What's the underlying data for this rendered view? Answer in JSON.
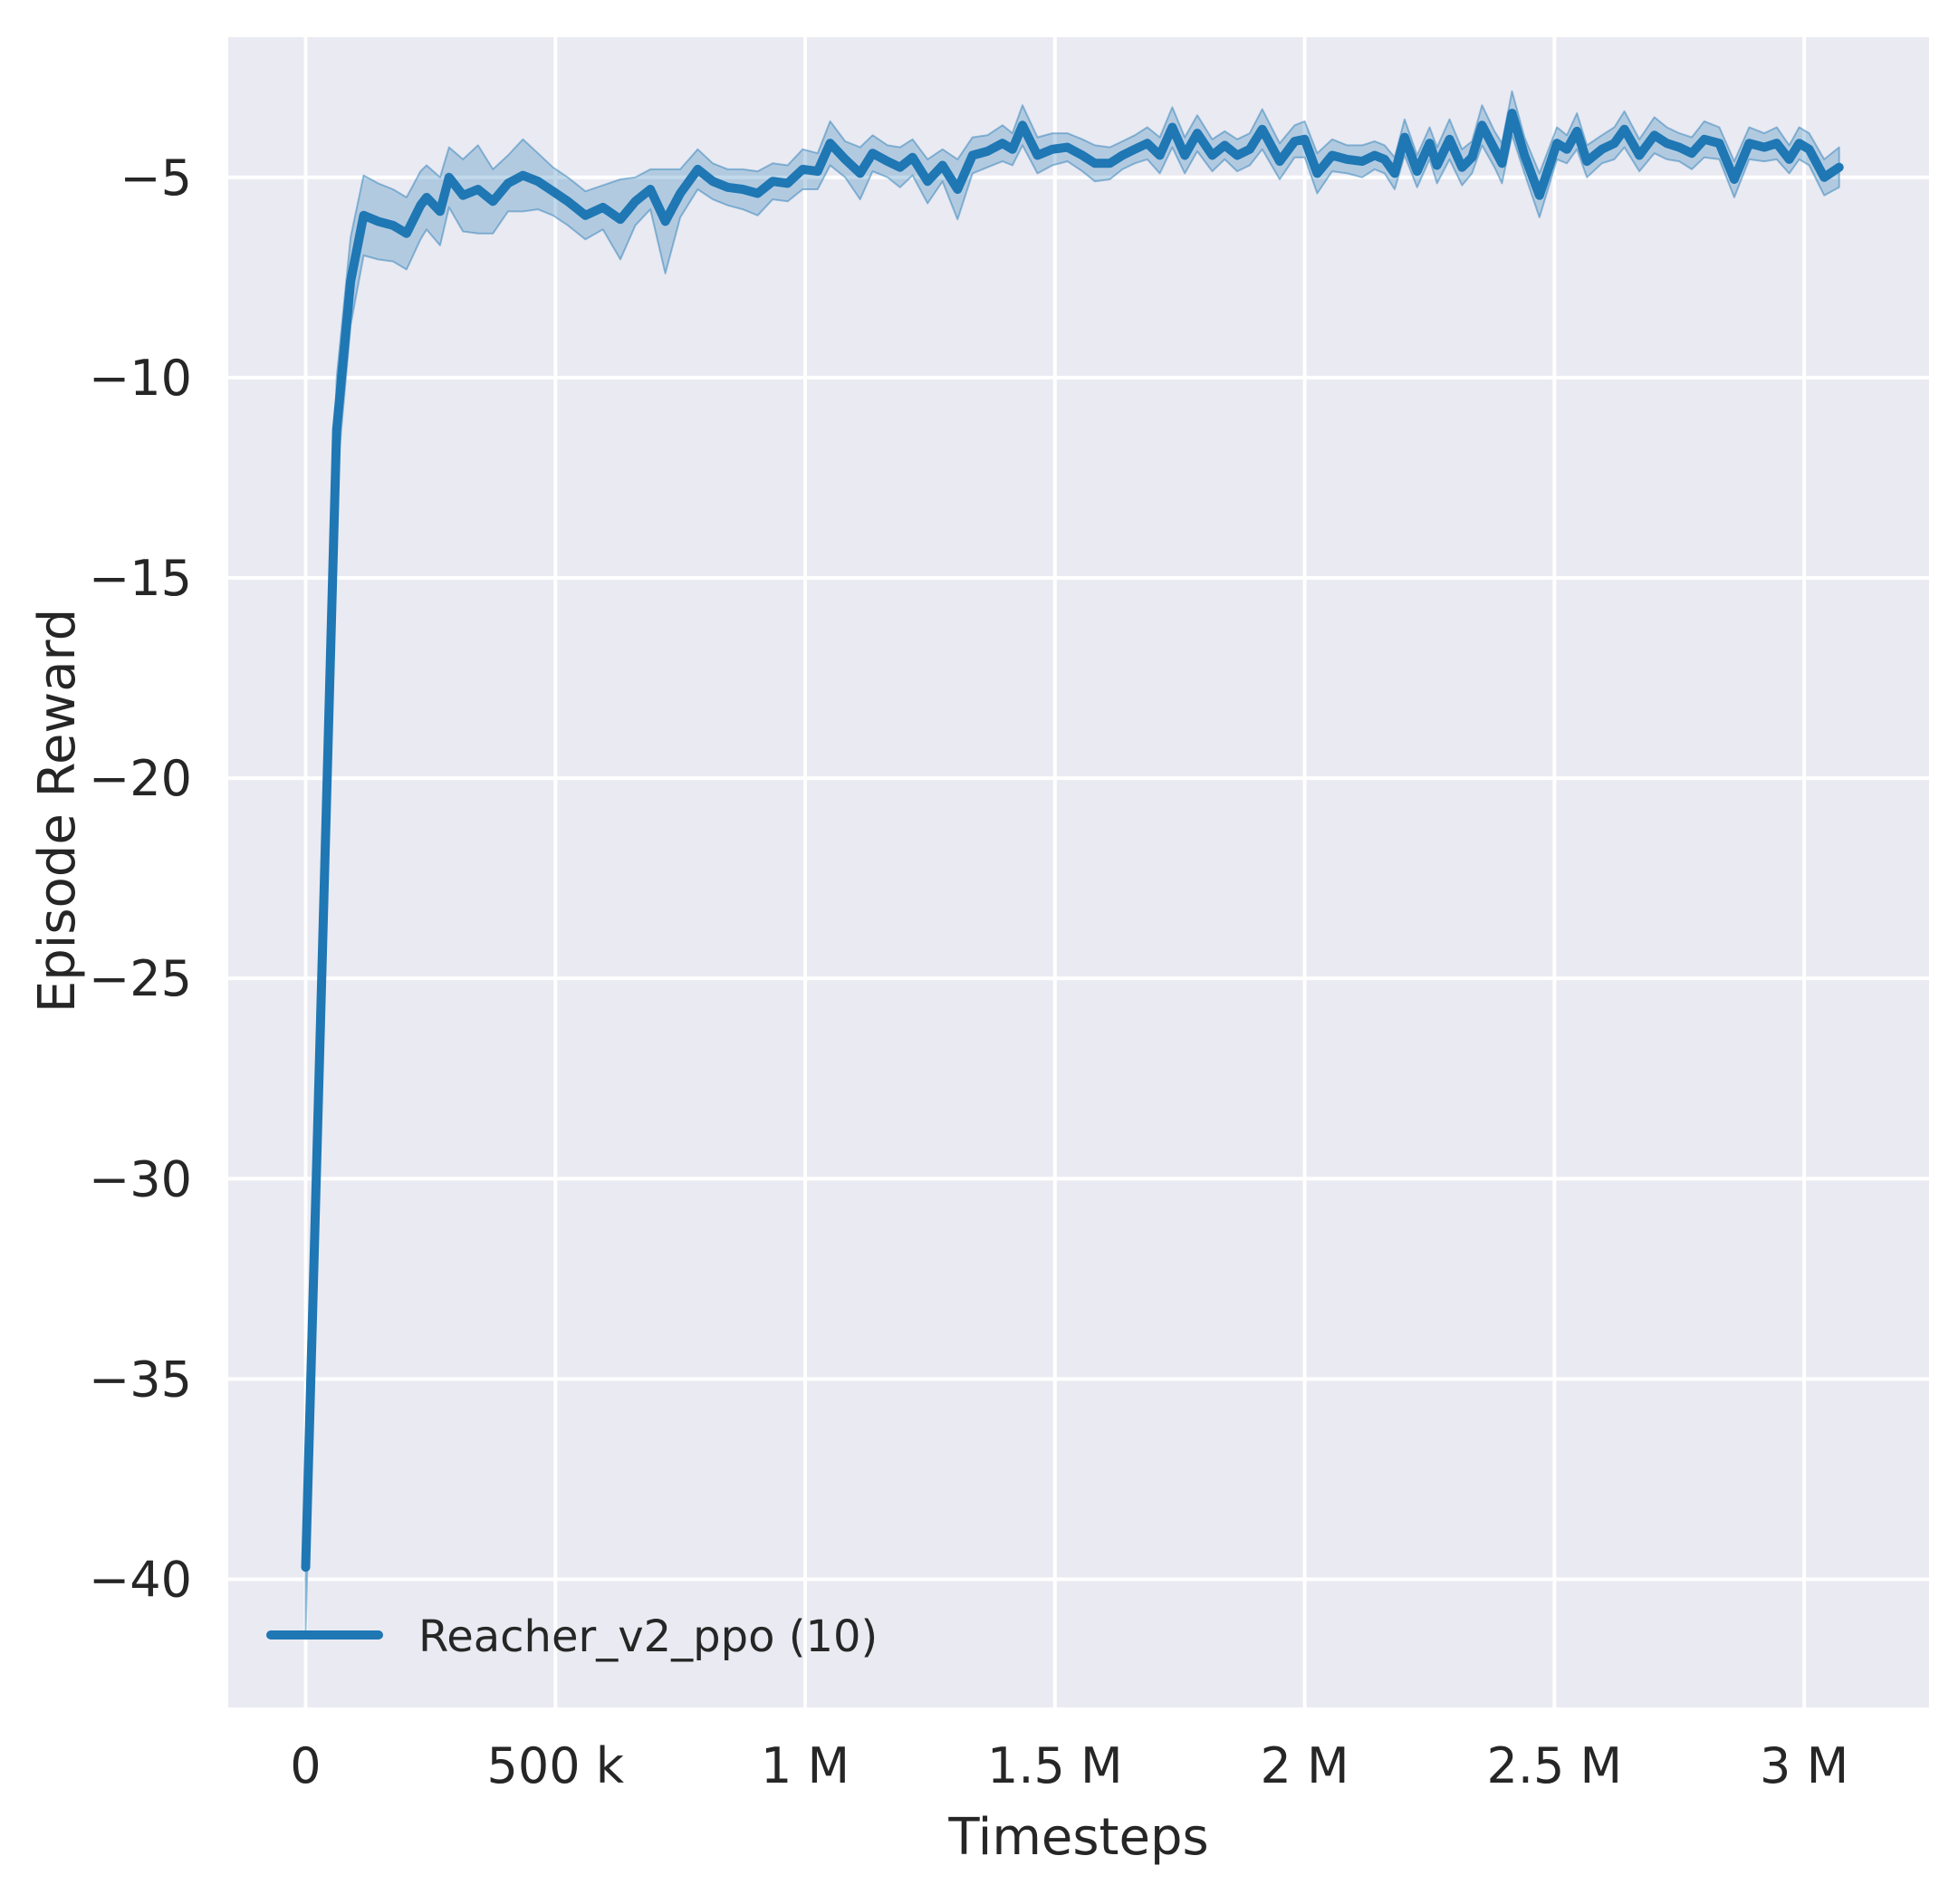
{
  "chart_data": {
    "type": "line",
    "title": "",
    "xlabel": "Timesteps",
    "ylabel": "Episode Reward",
    "grid": true,
    "legend_position": "lower left",
    "xlim": [
      -155000,
      3250000
    ],
    "ylim": [
      -43.2,
      -1.5
    ],
    "x_ticks": [
      {
        "value": 0,
        "label": "0"
      },
      {
        "value": 500000,
        "label": "500 k"
      },
      {
        "value": 1000000,
        "label": "1 M"
      },
      {
        "value": 1500000,
        "label": "1.5 M"
      },
      {
        "value": 2000000,
        "label": "2 M"
      },
      {
        "value": 2500000,
        "label": "2.5 M"
      },
      {
        "value": 3000000,
        "label": "3 M"
      }
    ],
    "y_ticks": [
      {
        "value": -5,
        "label": "−5"
      },
      {
        "value": -10,
        "label": "−10"
      },
      {
        "value": -15,
        "label": "−15"
      },
      {
        "value": -20,
        "label": "−20"
      },
      {
        "value": -25,
        "label": "−25"
      },
      {
        "value": -30,
        "label": "−30"
      },
      {
        "value": -35,
        "label": "−35"
      },
      {
        "value": -40,
        "label": "−40"
      }
    ],
    "legend": [
      {
        "label": "Reacher_v2_ppo (10)",
        "color": "#1f77b4"
      }
    ],
    "series": [
      {
        "name": "Reacher_v2_ppo (10)",
        "color": "#1f77b4",
        "band_opacity": 0.28,
        "points_format": [
          "timesteps",
          "episode_reward_mean",
          "ci_halfwidth"
        ],
        "points": [
          [
            0,
            -39.7,
            1.6
          ],
          [
            30000,
            -26.0,
            1.5
          ],
          [
            62000,
            -11.3,
            1.3
          ],
          [
            90000,
            -7.6,
            1.1
          ],
          [
            116000,
            -5.95,
            1.0
          ],
          [
            145000,
            -6.1,
            0.95
          ],
          [
            175000,
            -6.2,
            0.9
          ],
          [
            202000,
            -6.4,
            0.9
          ],
          [
            230000,
            -5.7,
            0.85
          ],
          [
            242000,
            -5.5,
            0.8
          ],
          [
            269000,
            -5.85,
            0.85
          ],
          [
            287000,
            -5.0,
            0.75
          ],
          [
            315000,
            -5.45,
            0.9
          ],
          [
            345000,
            -5.3,
            1.1
          ],
          [
            375000,
            -5.6,
            0.8
          ],
          [
            405000,
            -5.15,
            0.7
          ],
          [
            435000,
            -4.95,
            0.9
          ],
          [
            465000,
            -5.1,
            0.7
          ],
          [
            495000,
            -5.35,
            0.6
          ],
          [
            525000,
            -5.6,
            0.6
          ],
          [
            560000,
            -5.95,
            0.6
          ],
          [
            595000,
            -5.75,
            0.55
          ],
          [
            630000,
            -6.05,
            1.0
          ],
          [
            660000,
            -5.6,
            0.6
          ],
          [
            690000,
            -5.3,
            0.5
          ],
          [
            720000,
            -6.1,
            1.3
          ],
          [
            750000,
            -5.4,
            0.6
          ],
          [
            785000,
            -4.8,
            0.5
          ],
          [
            815000,
            -5.1,
            0.45
          ],
          [
            845000,
            -5.25,
            0.45
          ],
          [
            875000,
            -5.3,
            0.5
          ],
          [
            905000,
            -5.4,
            0.55
          ],
          [
            935000,
            -5.1,
            0.45
          ],
          [
            965000,
            -5.15,
            0.45
          ],
          [
            995000,
            -4.8,
            0.5
          ],
          [
            1025000,
            -4.85,
            0.45
          ],
          [
            1050000,
            -4.15,
            0.55
          ],
          [
            1080000,
            -4.55,
            0.45
          ],
          [
            1110000,
            -4.9,
            0.65
          ],
          [
            1135000,
            -4.4,
            0.45
          ],
          [
            1165000,
            -4.6,
            0.4
          ],
          [
            1190000,
            -4.75,
            0.5
          ],
          [
            1215000,
            -4.5,
            0.45
          ],
          [
            1245000,
            -5.1,
            0.55
          ],
          [
            1275000,
            -4.7,
            0.4
          ],
          [
            1305000,
            -5.3,
            0.75
          ],
          [
            1335000,
            -4.45,
            0.45
          ],
          [
            1365000,
            -4.35,
            0.4
          ],
          [
            1395000,
            -4.15,
            0.45
          ],
          [
            1415000,
            -4.3,
            0.4
          ],
          [
            1435000,
            -3.7,
            0.5
          ],
          [
            1465000,
            -4.45,
            0.45
          ],
          [
            1495000,
            -4.3,
            0.4
          ],
          [
            1525000,
            -4.25,
            0.35
          ],
          [
            1555000,
            -4.45,
            0.4
          ],
          [
            1580000,
            -4.65,
            0.45
          ],
          [
            1610000,
            -4.65,
            0.4
          ],
          [
            1635000,
            -4.45,
            0.35
          ],
          [
            1660000,
            -4.3,
            0.35
          ],
          [
            1685000,
            -4.15,
            0.4
          ],
          [
            1710000,
            -4.45,
            0.45
          ],
          [
            1735000,
            -3.75,
            0.5
          ],
          [
            1760000,
            -4.45,
            0.45
          ],
          [
            1785000,
            -3.9,
            0.45
          ],
          [
            1815000,
            -4.45,
            0.4
          ],
          [
            1840000,
            -4.2,
            0.35
          ],
          [
            1865000,
            -4.45,
            0.4
          ],
          [
            1890000,
            -4.3,
            0.4
          ],
          [
            1915000,
            -3.8,
            0.5
          ],
          [
            1950000,
            -4.6,
            0.45
          ],
          [
            1980000,
            -4.1,
            0.4
          ],
          [
            2000000,
            -4.05,
            0.45
          ],
          [
            2025000,
            -4.9,
            0.5
          ],
          [
            2055000,
            -4.45,
            0.4
          ],
          [
            2085000,
            -4.55,
            0.35
          ],
          [
            2115000,
            -4.6,
            0.4
          ],
          [
            2140000,
            -4.45,
            0.35
          ],
          [
            2160000,
            -4.55,
            0.35
          ],
          [
            2180000,
            -4.9,
            0.4
          ],
          [
            2200000,
            -4.0,
            0.45
          ],
          [
            2225000,
            -4.85,
            0.4
          ],
          [
            2250000,
            -4.15,
            0.4
          ],
          [
            2265000,
            -4.7,
            0.45
          ],
          [
            2290000,
            -4.05,
            0.5
          ],
          [
            2315000,
            -4.75,
            0.45
          ],
          [
            2335000,
            -4.5,
            0.4
          ],
          [
            2355000,
            -3.7,
            0.5
          ],
          [
            2380000,
            -4.3,
            0.45
          ],
          [
            2395000,
            -4.65,
            0.5
          ],
          [
            2415000,
            -3.4,
            0.55
          ],
          [
            2440000,
            -4.45,
            0.45
          ],
          [
            2470000,
            -5.45,
            0.55
          ],
          [
            2505000,
            -4.15,
            0.4
          ],
          [
            2525000,
            -4.3,
            0.35
          ],
          [
            2545000,
            -3.85,
            0.45
          ],
          [
            2565000,
            -4.6,
            0.4
          ],
          [
            2595000,
            -4.3,
            0.35
          ],
          [
            2620000,
            -4.15,
            0.4
          ],
          [
            2640000,
            -3.8,
            0.45
          ],
          [
            2670000,
            -4.45,
            0.4
          ],
          [
            2700000,
            -3.95,
            0.45
          ],
          [
            2725000,
            -4.15,
            0.4
          ],
          [
            2750000,
            -4.25,
            0.35
          ],
          [
            2775000,
            -4.4,
            0.4
          ],
          [
            2800000,
            -4.05,
            0.45
          ],
          [
            2830000,
            -4.15,
            0.4
          ],
          [
            2860000,
            -5.05,
            0.45
          ],
          [
            2890000,
            -4.15,
            0.4
          ],
          [
            2920000,
            -4.25,
            0.35
          ],
          [
            2945000,
            -4.15,
            0.4
          ],
          [
            2970000,
            -4.55,
            0.35
          ],
          [
            2990000,
            -4.15,
            0.4
          ],
          [
            3010000,
            -4.3,
            0.4
          ],
          [
            3040000,
            -5.0,
            0.45
          ],
          [
            3070000,
            -4.75,
            0.5
          ]
        ]
      }
    ],
    "colors": {
      "line": "#1f77b4",
      "band": "#1f77b4",
      "plot_background": "#eaeaf2",
      "gridline": "#ffffff",
      "text": "#262626",
      "figure_background": "#ffffff"
    }
  }
}
